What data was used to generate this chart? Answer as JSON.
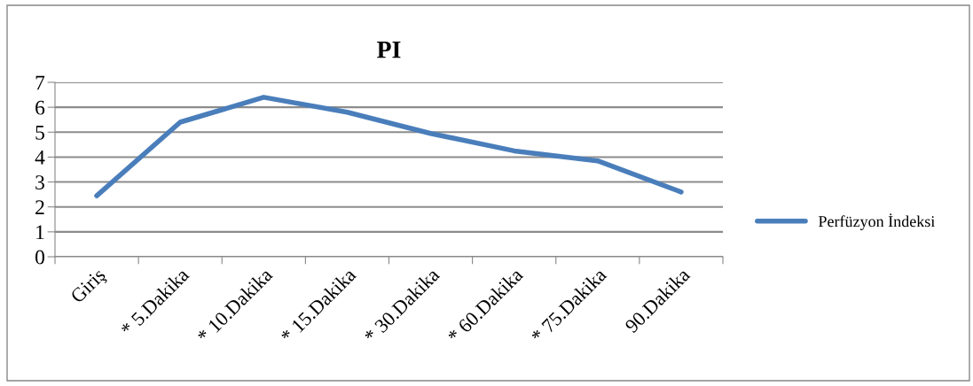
{
  "chart_data": {
    "type": "line",
    "title": "PI",
    "categories": [
      "Giriş",
      "* 5.Dakika",
      "* 10.Dakika",
      "* 15.Dakika",
      "* 30.Dakika",
      "* 60.Dakika",
      "* 75.Dakika",
      "90.Dakika"
    ],
    "series": [
      {
        "name": "Perfüzyon İndeksi",
        "color": "#4a7ebb",
        "values": [
          2.45,
          5.4,
          6.4,
          5.8,
          4.95,
          4.25,
          3.85,
          2.6
        ]
      }
    ],
    "ylim": [
      0,
      7
    ],
    "yticks": [
      0,
      1,
      2,
      3,
      4,
      5,
      6,
      7
    ],
    "grid": "y",
    "legend": "right",
    "marker": "none",
    "line_style": "solid"
  }
}
